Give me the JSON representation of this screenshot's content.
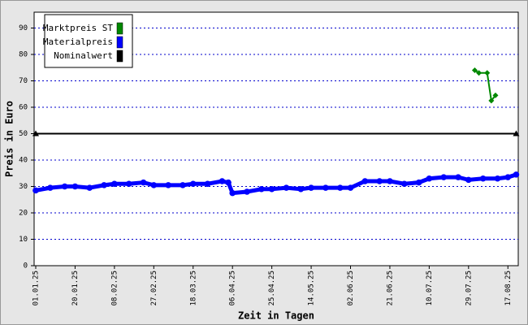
{
  "chart_data": {
    "type": "line",
    "xlabel": "Zeit in Tagen",
    "ylabel": "Preis in Euro",
    "ylim": [
      0,
      96
    ],
    "yticks": [
      0,
      10,
      20,
      30,
      40,
      50,
      60,
      70,
      80,
      90
    ],
    "xlim": [
      "01.01.25",
      "22.08.25"
    ],
    "xticks": [
      "01.01.25",
      "20.01.25",
      "08.02.25",
      "27.02.25",
      "18.03.25",
      "06.04.25",
      "25.04.25",
      "14.05.25",
      "02.06.25",
      "21.06.25",
      "10.07.25",
      "29.07.25",
      "17.08.25"
    ],
    "grid": true,
    "legend": "upper left",
    "series": [
      {
        "name": "Marktpreis ST",
        "color": "#008800",
        "marker": "diamond",
        "x": [
          "01.08.25",
          "03.08.25",
          "07.08.25",
          "09.08.25",
          "11.08.25"
        ],
        "values": [
          74,
          73,
          73,
          62.5,
          64.5
        ]
      },
      {
        "name": "Materialpreis",
        "color": "#0000ff",
        "marker": "circle",
        "x": [
          "01.01.25",
          "08.01.25",
          "15.01.25",
          "20.01.25",
          "27.01.25",
          "03.02.25",
          "08.02.25",
          "15.02.25",
          "22.02.25",
          "27.02.25",
          "06.03.25",
          "13.03.25",
          "18.03.25",
          "25.03.25",
          "01.04.25",
          "04.04.25",
          "06.04.25",
          "13.04.25",
          "20.04.25",
          "25.04.25",
          "02.05.25",
          "09.05.25",
          "14.05.25",
          "21.05.25",
          "28.05.25",
          "02.06.25",
          "09.06.25",
          "16.06.25",
          "21.06.25",
          "28.06.25",
          "05.07.25",
          "10.07.25",
          "17.07.25",
          "24.07.25",
          "29.07.25",
          "05.08.25",
          "12.08.25",
          "17.08.25",
          "21.08.25"
        ],
        "values": [
          28.5,
          29.5,
          30,
          30,
          29.5,
          30.5,
          31,
          31,
          31.5,
          30.5,
          30.5,
          30.5,
          31,
          31,
          32,
          31.5,
          27.5,
          28,
          29,
          29,
          29.5,
          29,
          29.5,
          29.5,
          29.5,
          29.5,
          32,
          32,
          32,
          31,
          31.5,
          33,
          33.5,
          33.5,
          32.5,
          33,
          33,
          33.5,
          34.5
        ]
      },
      {
        "name": "Nominalwert",
        "color": "#000000",
        "marker": "triangle",
        "x": [
          "01.01.25",
          "21.08.25"
        ],
        "values": [
          50,
          50
        ]
      }
    ]
  }
}
